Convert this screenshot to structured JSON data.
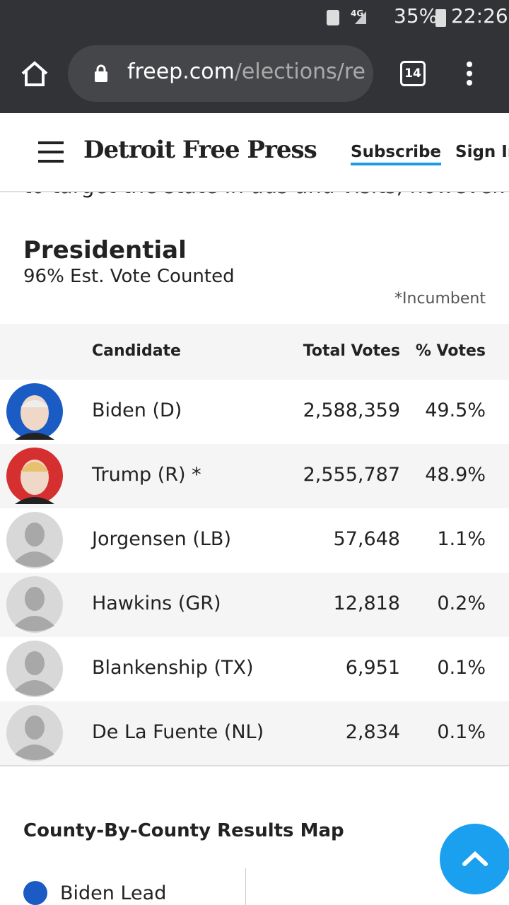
{
  "status_bar": {
    "network": "4G",
    "battery": "35%",
    "time": "22:26"
  },
  "browser": {
    "url_host": "freep.com",
    "url_path": "/elections/re",
    "tab_count": "14"
  },
  "header": {
    "logo": "Detroit Free Press",
    "subscribe": "Subscribe",
    "sign_in": "Sign In"
  },
  "article": {
    "cut_text": "to target the state in ads and visits, however."
  },
  "results": {
    "title": "Presidential",
    "subtitle": "96% Est. Vote Counted",
    "note": "*Incumbent",
    "table": {
      "header": [
        "Candidate",
        "Total Votes",
        "% Votes"
      ],
      "rows": [
        [
          "Biden (D)",
          "2,588,359",
          "49.5%"
        ],
        [
          "Trump (R) *",
          "2,555,787",
          "48.9%"
        ],
        [
          "Jorgensen (LB)",
          "57,648",
          "1.1%"
        ],
        [
          "Hawkins (GR)",
          "12,818",
          "0.2%"
        ],
        [
          "Blankenship (TX)",
          "6,951",
          "0.1%"
        ],
        [
          "De La Fuente (NL)",
          "2,834",
          "0.1%"
        ]
      ]
    }
  },
  "map": {
    "title": "County-By-County Results Map",
    "legend": [
      "Biden Lead"
    ]
  }
}
